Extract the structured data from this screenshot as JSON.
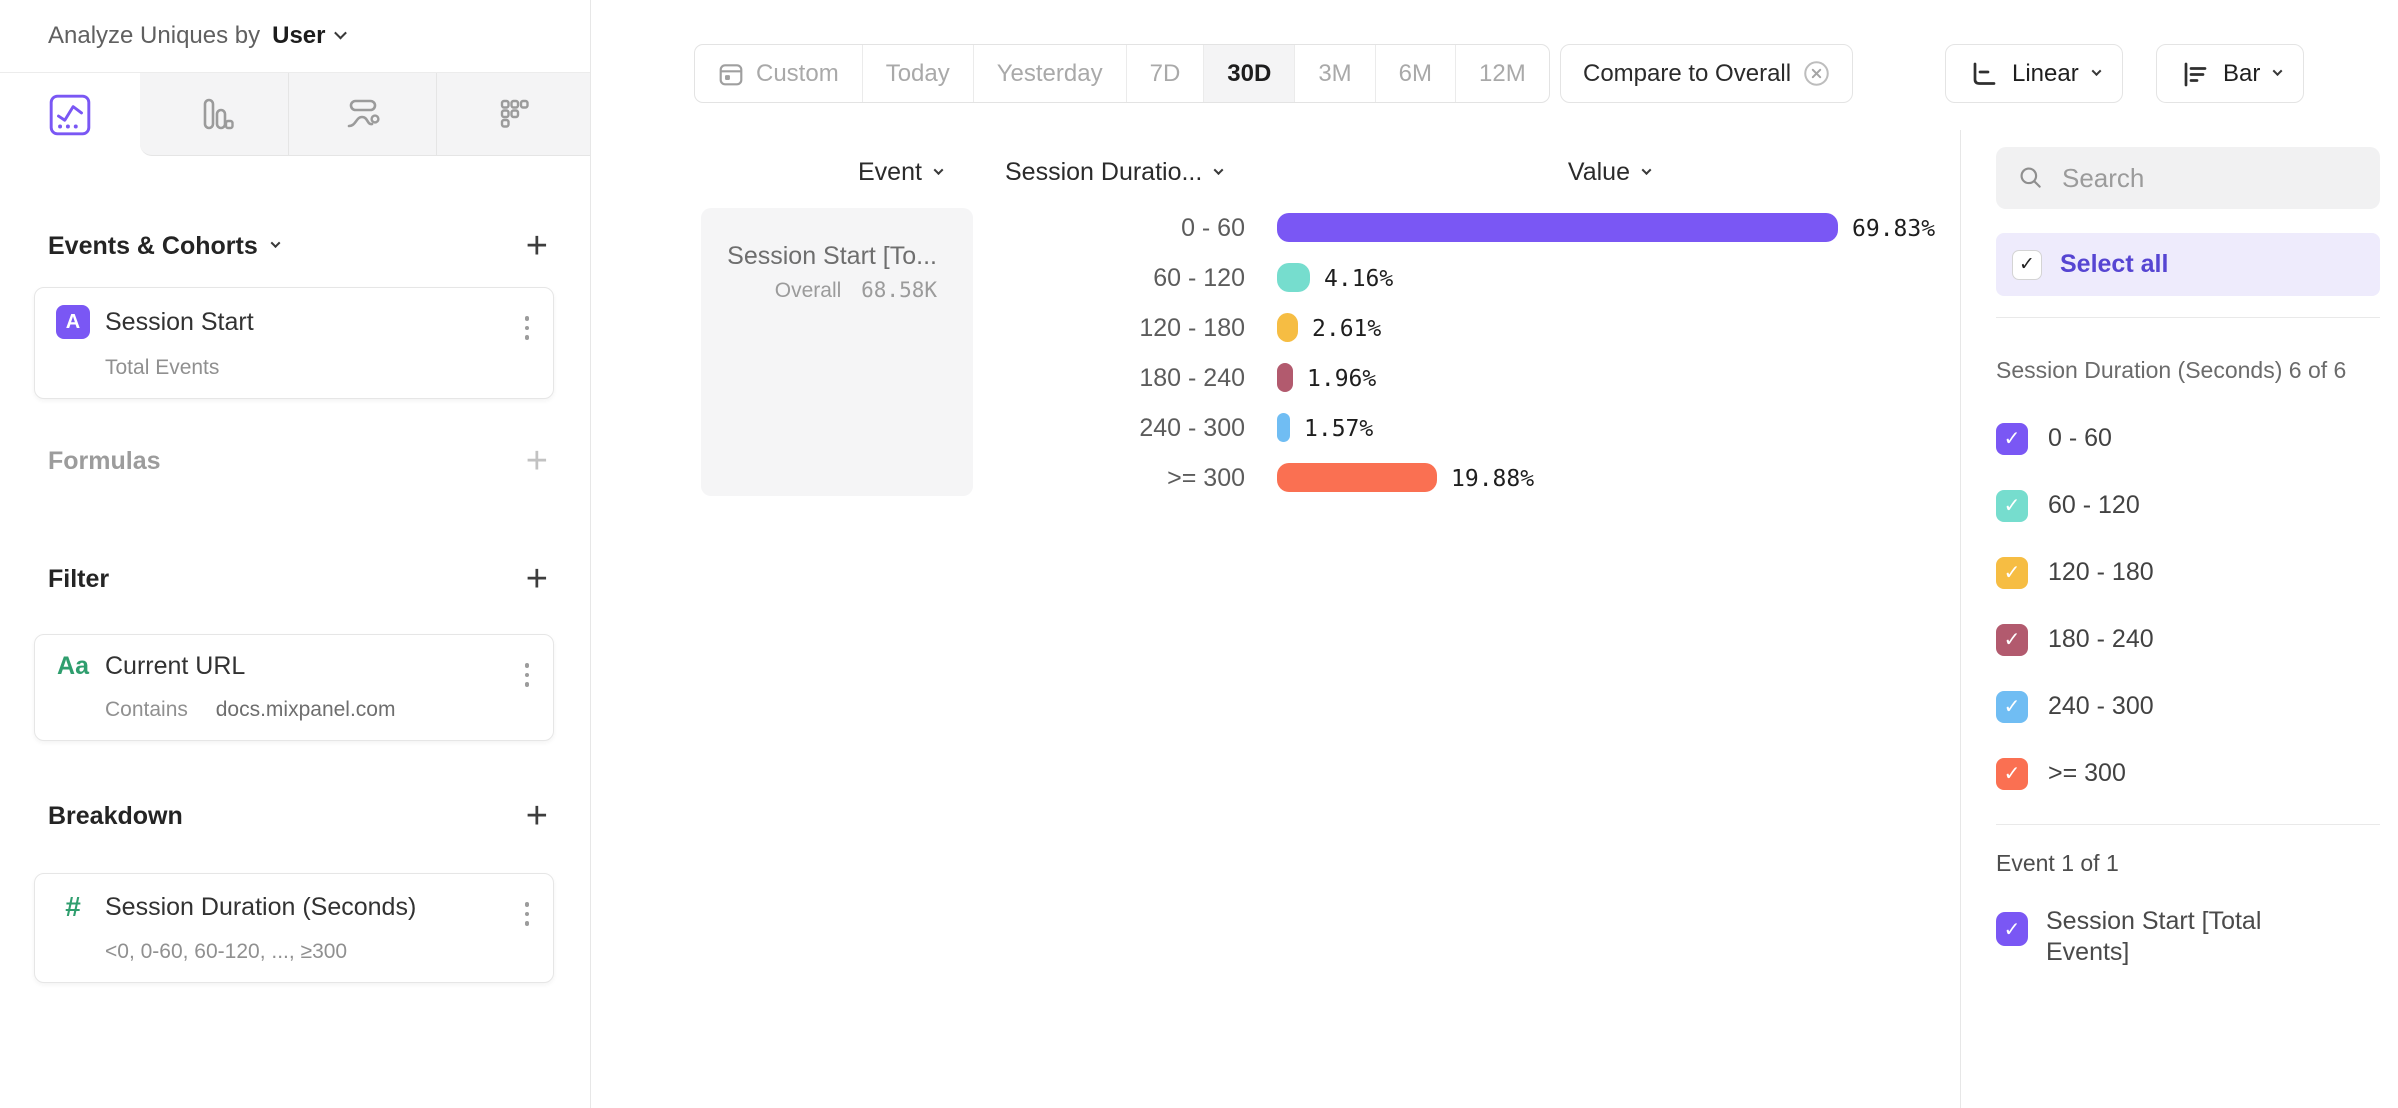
{
  "header": {
    "label": "Analyze Uniques by",
    "value": "User"
  },
  "sidebar": {
    "tabs": [
      {
        "icon": "insights-line-chart-icon",
        "selected": true
      },
      {
        "icon": "bar-chart-icon",
        "selected": false
      },
      {
        "icon": "flow-icon",
        "selected": false
      },
      {
        "icon": "metrics-grid-icon",
        "selected": false
      }
    ],
    "events_section": {
      "title": "Events & Cohorts",
      "card": {
        "badge": "A",
        "title": "Session Start",
        "subtitle": "Total Events"
      }
    },
    "formulas_section": {
      "title": "Formulas"
    },
    "filter_section": {
      "title": "Filter",
      "card": {
        "icon": "Aa",
        "title": "Current URL",
        "operator": "Contains",
        "value": "docs.mixpanel.com"
      }
    },
    "breakdown_section": {
      "title": "Breakdown",
      "card": {
        "icon": "#",
        "title": "Session Duration (Seconds)",
        "subtitle": "<0, 0-60, 60-120, ..., ≥300"
      }
    }
  },
  "toolbar": {
    "date_ranges": [
      "Custom",
      "Today",
      "Yesterday",
      "7D",
      "30D",
      "3M",
      "6M",
      "12M"
    ],
    "active_range": "30D",
    "compare_label": "Compare to Overall",
    "scale_label": "Linear",
    "chart_type_label": "Bar"
  },
  "table": {
    "columns": {
      "event": "Event",
      "breakdown": "Session Duratio...",
      "value": "Value"
    },
    "event_cell": {
      "title": "Session Start [To...",
      "overall_label": "Overall",
      "overall_value": "68.58K"
    }
  },
  "chart_data": {
    "type": "bar",
    "orientation": "horizontal",
    "categories": [
      "0 - 60",
      "60 - 120",
      "120 - 180",
      "180 - 240",
      "240 - 300",
      ">= 300"
    ],
    "values": [
      69.83,
      4.16,
      2.61,
      1.96,
      1.57,
      19.88
    ],
    "value_labels": [
      "69.83%",
      "4.16%",
      "2.61%",
      "1.96%",
      "1.57%",
      "19.88%"
    ],
    "unit": "%",
    "colors": [
      "#7a57f4",
      "#76ddce",
      "#f6bd43",
      "#b25a6e",
      "#70bdf3",
      "#fa7052"
    ],
    "series": "Session Start [Total Events]",
    "overall": "68.58K",
    "xlim": [
      0,
      100
    ],
    "grid": false,
    "legend_position": "right-panel"
  },
  "right_panel": {
    "search_placeholder": "Search",
    "select_all_label": "Select all",
    "group_label": "Session Duration (Seconds) 6 of 6",
    "segments": [
      {
        "label": "0 - 60",
        "color": "#7a57f4",
        "checked": true
      },
      {
        "label": "60 - 120",
        "color": "#76ddce",
        "checked": true
      },
      {
        "label": "120 - 180",
        "color": "#f6bd43",
        "checked": true
      },
      {
        "label": "180 - 240",
        "color": "#b25a6e",
        "checked": true
      },
      {
        "label": "240 - 300",
        "color": "#70bdf3",
        "checked": true
      },
      {
        "label": ">= 300",
        "color": "#fa7052",
        "checked": true
      }
    ],
    "event_group_label": "Event 1 of 1",
    "events": [
      {
        "label": "Session Start [Total Events]",
        "color": "#7a57f4",
        "checked": true
      }
    ]
  }
}
